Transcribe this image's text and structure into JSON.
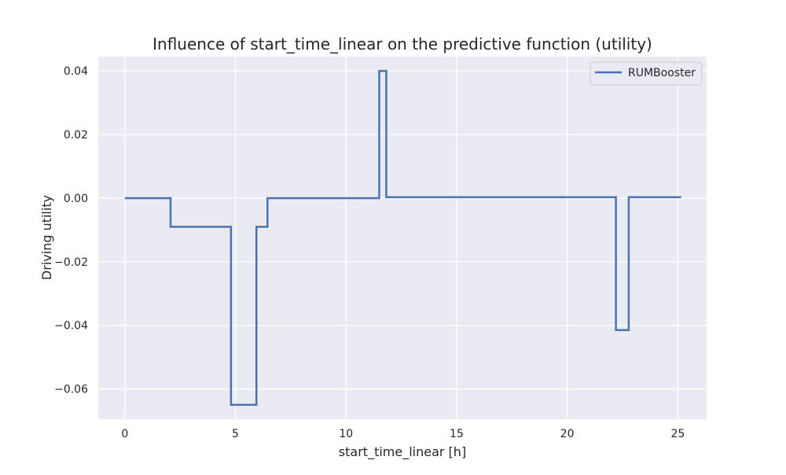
{
  "chart_data": {
    "type": "line",
    "title": "Influence of start_time_linear on the predictive function (utility)",
    "xlabel": "start_time_linear [h]",
    "ylabel": "Driving utility",
    "xlim": [
      -1.2,
      26.3
    ],
    "ylim": [
      -0.0695,
      0.0445
    ],
    "x_ticks": [
      0,
      5,
      10,
      15,
      20,
      25
    ],
    "x_tick_labels": [
      "0",
      "5",
      "10",
      "15",
      "20",
      "25"
    ],
    "y_ticks": [
      0.04,
      0.02,
      0.0,
      -0.02,
      -0.04,
      -0.06
    ],
    "y_tick_labels": [
      "0.04",
      "0.02",
      "0.00",
      "−0.02",
      "−0.04",
      "−0.06"
    ],
    "grid": true,
    "legend_position": "top-right",
    "colors": {
      "series": "#4c72b0",
      "background": "#eaeaf2",
      "grid": "#ffffff"
    },
    "series": [
      {
        "name": "RUMBooster",
        "step": true,
        "x": [
          0,
          2.07,
          4.8,
          5.95,
          6.45,
          11.5,
          11.82,
          22.2,
          22.78,
          25.15
        ],
        "y": [
          0.0,
          -0.009,
          -0.065,
          -0.009,
          0.0,
          0.04,
          0.0003,
          -0.0415,
          0.0003,
          0.0003
        ]
      }
    ]
  }
}
